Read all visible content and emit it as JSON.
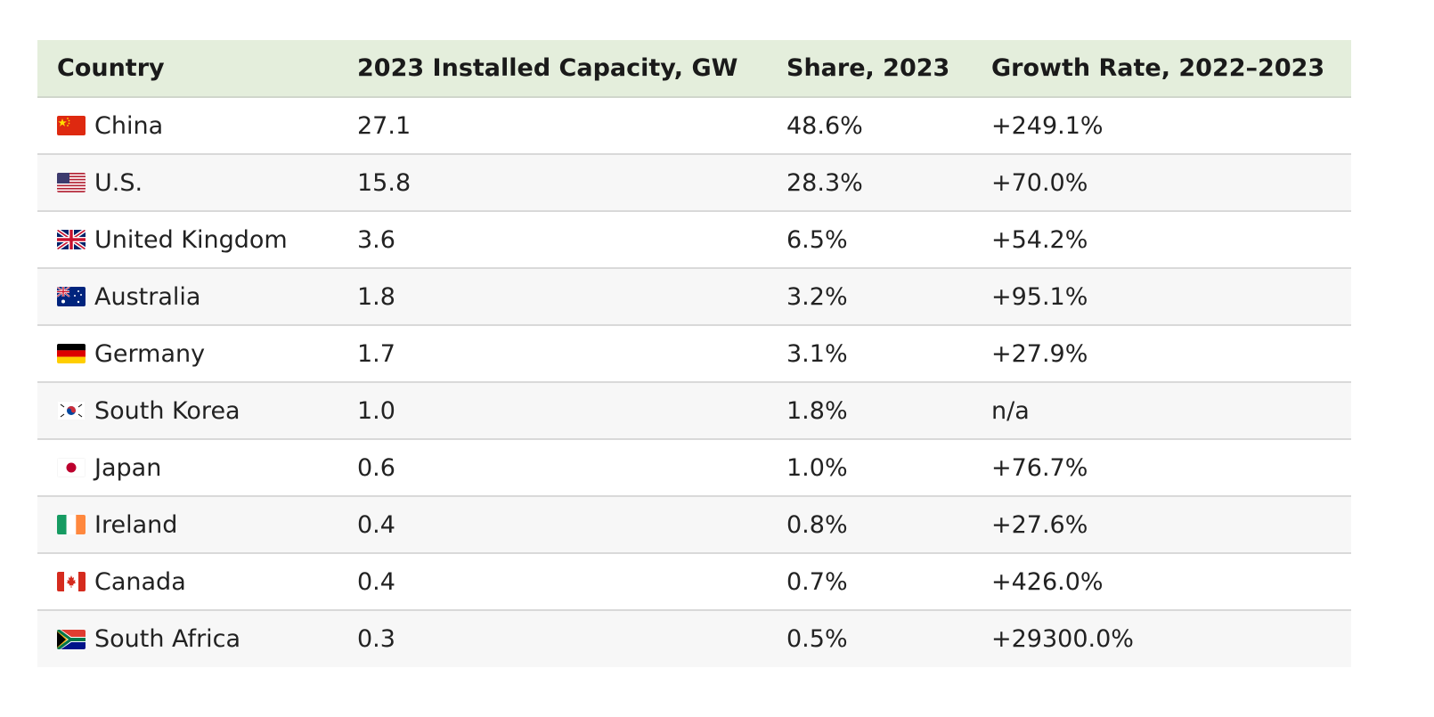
{
  "table": {
    "headers": {
      "country": "Country",
      "capacity": "2023 Installed Capacity, GW",
      "share": "Share, 2023",
      "growth": "Growth Rate, 2022–2023"
    },
    "rows": [
      {
        "flag": "china-flag-icon",
        "country": "China",
        "capacity": "27.1",
        "share": "48.6%",
        "growth": "+249.1%"
      },
      {
        "flag": "us-flag-icon",
        "country": "U.S.",
        "capacity": "15.8",
        "share": "28.3%",
        "growth": "+70.0%"
      },
      {
        "flag": "uk-flag-icon",
        "country": "United Kingdom",
        "capacity": "3.6",
        "share": "6.5%",
        "growth": "+54.2%"
      },
      {
        "flag": "australia-flag-icon",
        "country": "Australia",
        "capacity": "1.8",
        "share": "3.2%",
        "growth": "+95.1%"
      },
      {
        "flag": "germany-flag-icon",
        "country": "Germany",
        "capacity": "1.7",
        "share": "3.1%",
        "growth": "+27.9%"
      },
      {
        "flag": "south-korea-flag-icon",
        "country": "South Korea",
        "capacity": "1.0",
        "share": "1.8%",
        "growth": "n/a"
      },
      {
        "flag": "japan-flag-icon",
        "country": "Japan",
        "capacity": "0.6",
        "share": "1.0%",
        "growth": "+76.7%"
      },
      {
        "flag": "ireland-flag-icon",
        "country": "Ireland",
        "capacity": "0.4",
        "share": "0.8%",
        "growth": "+27.6%"
      },
      {
        "flag": "canada-flag-icon",
        "country": "Canada",
        "capacity": "0.4",
        "share": "0.7%",
        "growth": "+426.0%"
      },
      {
        "flag": "south-africa-flag-icon",
        "country": "South Africa",
        "capacity": "0.3",
        "share": "0.5%",
        "growth": "+29300.0%"
      }
    ]
  },
  "colors": {
    "header_bg": "#e4eedc",
    "stripe_bg": "#f7f7f7",
    "row_border": "#d9d9d9"
  }
}
